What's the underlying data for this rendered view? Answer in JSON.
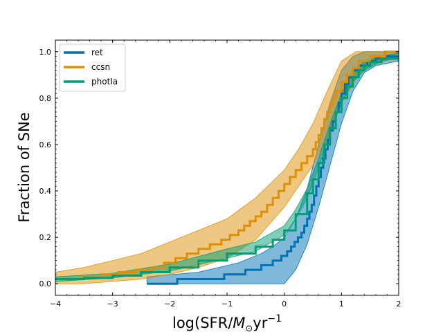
{
  "chart_data": {
    "type": "line",
    "title": "",
    "xlabel_parts": {
      "base": "log(SFR/",
      "msym": "M",
      "sub": "⊙",
      "unit": "yr",
      "sup": "−1"
    },
    "ylabel": "Fraction of SNe",
    "xlim": [
      -4,
      2
    ],
    "ylim": [
      -0.05,
      1.05
    ],
    "xticks": [
      -4,
      -3,
      -2,
      -1,
      0,
      1,
      2
    ],
    "xtick_labels": [
      "−4",
      "−3",
      "−2",
      "−1",
      "0",
      "1",
      "2"
    ],
    "yticks": [
      0.0,
      0.2,
      0.4,
      0.6,
      0.8,
      1.0
    ],
    "ytick_labels": [
      "0.0",
      "0.2",
      "0.4",
      "0.6",
      "0.8",
      "1.0"
    ],
    "legend_position": "top-left",
    "grid": false,
    "series": [
      {
        "name": "ret",
        "color": "#0072b2",
        "x": [
          -2.4,
          -1.87,
          -1.05,
          -0.68,
          -0.4,
          -0.2,
          -0.05,
          0.05,
          0.12,
          0.18,
          0.24,
          0.3,
          0.35,
          0.4,
          0.44,
          0.48,
          0.52,
          0.56,
          0.6,
          0.64,
          0.68,
          0.72,
          0.76,
          0.8,
          0.85,
          0.9,
          0.95,
          1.0,
          1.06,
          1.12,
          1.2,
          1.3,
          1.45,
          1.6,
          1.8,
          2.0
        ],
        "y": [
          0.0,
          0.02,
          0.04,
          0.06,
          0.08,
          0.1,
          0.12,
          0.14,
          0.16,
          0.18,
          0.2,
          0.22,
          0.25,
          0.28,
          0.31,
          0.34,
          0.38,
          0.42,
          0.46,
          0.5,
          0.54,
          0.58,
          0.62,
          0.66,
          0.7,
          0.74,
          0.78,
          0.82,
          0.86,
          0.89,
          0.92,
          0.94,
          0.96,
          0.97,
          0.98,
          0.98
        ],
        "band_x": [
          -2.4,
          -1.5,
          -0.8,
          -0.4,
          -0.2,
          0.0,
          0.2,
          0.4,
          0.6,
          0.8,
          1.0,
          1.2,
          1.4,
          1.6,
          2.0
        ],
        "band_lower": [
          0.0,
          0.0,
          0.0,
          0.0,
          0.0,
          0.0,
          0.06,
          0.17,
          0.33,
          0.51,
          0.69,
          0.83,
          0.91,
          0.94,
          0.96
        ],
        "band_upper": [
          0.03,
          0.05,
          0.09,
          0.13,
          0.16,
          0.2,
          0.28,
          0.41,
          0.6,
          0.78,
          0.92,
          0.98,
          1.0,
          1.0,
          1.0
        ]
      },
      {
        "name": "ccsn",
        "color": "#de8f05",
        "x": [
          -4.0,
          -3.6,
          -3.2,
          -2.9,
          -2.6,
          -2.3,
          -2.1,
          -1.9,
          -1.7,
          -1.5,
          -1.3,
          -1.1,
          -0.95,
          -0.8,
          -0.7,
          -0.6,
          -0.5,
          -0.4,
          -0.3,
          -0.2,
          -0.1,
          0.0,
          0.1,
          0.2,
          0.3,
          0.4,
          0.5,
          0.55,
          0.6,
          0.65,
          0.7,
          0.75,
          0.8,
          0.85,
          0.9,
          1.0,
          1.1,
          1.2,
          1.3,
          1.5,
          1.75,
          2.0
        ],
        "y": [
          0.02,
          0.03,
          0.04,
          0.05,
          0.06,
          0.07,
          0.09,
          0.11,
          0.13,
          0.15,
          0.17,
          0.19,
          0.21,
          0.23,
          0.25,
          0.27,
          0.29,
          0.31,
          0.34,
          0.37,
          0.4,
          0.43,
          0.46,
          0.49,
          0.52,
          0.55,
          0.58,
          0.61,
          0.64,
          0.67,
          0.71,
          0.74,
          0.77,
          0.8,
          0.83,
          0.87,
          0.9,
          0.93,
          0.96,
          0.98,
          1.0,
          1.0
        ],
        "band_x": [
          -4.0,
          -3.5,
          -3.0,
          -2.5,
          -2.0,
          -1.5,
          -1.0,
          -0.5,
          0.0,
          0.25,
          0.5,
          0.75,
          1.0,
          1.25,
          1.5,
          2.0
        ],
        "band_lower": [
          0.0,
          0.0,
          0.01,
          0.02,
          0.04,
          0.07,
          0.11,
          0.19,
          0.33,
          0.42,
          0.51,
          0.63,
          0.78,
          0.88,
          0.95,
          0.97
        ],
        "band_upper": [
          0.05,
          0.07,
          0.1,
          0.13,
          0.18,
          0.23,
          0.28,
          0.37,
          0.49,
          0.58,
          0.69,
          0.83,
          0.96,
          1.0,
          1.0,
          1.0
        ]
      },
      {
        "name": "photIa",
        "color": "#029e73",
        "x": [
          -4.0,
          -3.5,
          -3.0,
          -2.5,
          -2.0,
          -1.5,
          -1.0,
          -0.5,
          -0.2,
          0.0,
          0.2,
          0.4,
          0.5,
          0.6,
          0.7,
          0.8,
          0.9,
          1.0,
          1.1,
          1.2,
          1.3,
          1.4,
          1.5,
          1.7,
          2.0
        ],
        "y": [
          0.02,
          0.025,
          0.035,
          0.05,
          0.07,
          0.1,
          0.13,
          0.16,
          0.19,
          0.23,
          0.3,
          0.39,
          0.45,
          0.52,
          0.6,
          0.67,
          0.74,
          0.8,
          0.85,
          0.89,
          0.92,
          0.94,
          0.955,
          0.97,
          0.985
        ],
        "band_x": [
          -4.0,
          -3.0,
          -2.0,
          -1.0,
          -0.5,
          0.0,
          0.2,
          0.4,
          0.6,
          0.8,
          1.0,
          1.2,
          1.4,
          1.7,
          2.0
        ],
        "band_lower": [
          0.01,
          0.025,
          0.055,
          0.11,
          0.14,
          0.21,
          0.28,
          0.37,
          0.5,
          0.65,
          0.78,
          0.87,
          0.92,
          0.96,
          0.975
        ],
        "band_upper": [
          0.03,
          0.045,
          0.085,
          0.15,
          0.18,
          0.25,
          0.32,
          0.41,
          0.54,
          0.69,
          0.82,
          0.91,
          0.96,
          0.98,
          0.995
        ]
      }
    ]
  }
}
